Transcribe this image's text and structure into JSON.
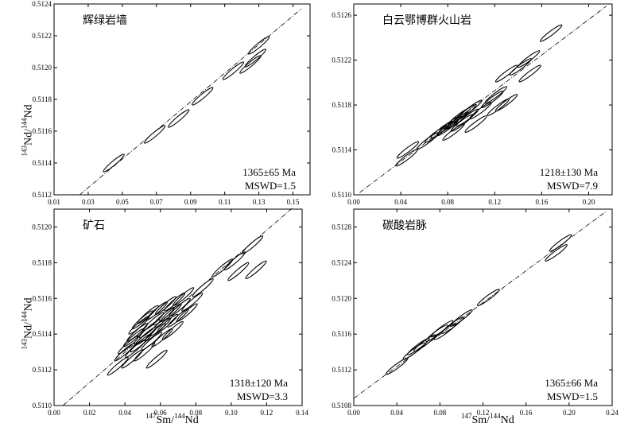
{
  "y_axis_label": {
    "mass_top": "143",
    "elem_top": "Nd/",
    "mass_bottom": "144",
    "elem_bottom": "Nd"
  },
  "x_axis_label": {
    "mass_top": "147",
    "elem_top": "Sm/",
    "mass_bottom": "144",
    "elem_bottom": "Nd"
  },
  "chart_data": [
    {
      "type": "scatter",
      "title": "辉绿岩墙",
      "annotation": [
        "1365±65 Ma",
        "MSWD=1.5"
      ],
      "xlim": [
        0.01,
        0.16
      ],
      "ylim": [
        0.5112,
        0.5124
      ],
      "xticks": [
        "0.01",
        "0.03",
        "0.05",
        "0.07",
        "0.09",
        "0.11",
        "0.13",
        "0.15"
      ],
      "yticks": [
        "0.5112",
        "0.5114",
        "0.5116",
        "0.5118",
        "0.5120",
        "0.5122",
        "0.5124"
      ],
      "isochron": {
        "x": [
          0.025,
          0.155
        ],
        "y": [
          0.5112,
          0.51237
        ]
      },
      "ellipses": [
        {
          "x": 0.045,
          "y": 0.5114
        },
        {
          "x": 0.069,
          "y": 0.51158
        },
        {
          "x": 0.083,
          "y": 0.51168
        },
        {
          "x": 0.097,
          "y": 0.51182
        },
        {
          "x": 0.115,
          "y": 0.51198
        },
        {
          "x": 0.125,
          "y": 0.51202
        },
        {
          "x": 0.128,
          "y": 0.51206
        },
        {
          "x": 0.13,
          "y": 0.51214
        }
      ]
    },
    {
      "type": "scatter",
      "title": "白云鄂博群火山岩",
      "annotation": [
        "1218±130 Ma",
        "MSWD=7.9"
      ],
      "xlim": [
        0.0,
        0.22
      ],
      "ylim": [
        0.511,
        0.5127
      ],
      "xticks": [
        "0.00",
        "0.04",
        "0.08",
        "0.12",
        "0.16",
        "0.20"
      ],
      "yticks": [
        "0.5110",
        "0.5114",
        "0.5118",
        "0.5122",
        "0.5126"
      ],
      "isochron": {
        "x": [
          0.005,
          0.215
        ],
        "y": [
          0.51102,
          0.51268
        ]
      },
      "ellipses": [
        {
          "x": 0.045,
          "y": 0.51133
        },
        {
          "x": 0.046,
          "y": 0.5114
        },
        {
          "x": 0.063,
          "y": 0.51148
        },
        {
          "x": 0.07,
          "y": 0.51154
        },
        {
          "x": 0.075,
          "y": 0.51158
        },
        {
          "x": 0.08,
          "y": 0.5116
        },
        {
          "x": 0.082,
          "y": 0.51163
        },
        {
          "x": 0.085,
          "y": 0.51156
        },
        {
          "x": 0.088,
          "y": 0.51166
        },
        {
          "x": 0.09,
          "y": 0.5117
        },
        {
          "x": 0.092,
          "y": 0.51164
        },
        {
          "x": 0.095,
          "y": 0.51173
        },
        {
          "x": 0.097,
          "y": 0.51169
        },
        {
          "x": 0.1,
          "y": 0.51177
        },
        {
          "x": 0.104,
          "y": 0.51163
        },
        {
          "x": 0.108,
          "y": 0.51175
        },
        {
          "x": 0.118,
          "y": 0.51185
        },
        {
          "x": 0.121,
          "y": 0.51189
        },
        {
          "x": 0.123,
          "y": 0.51178
        },
        {
          "x": 0.13,
          "y": 0.51182
        },
        {
          "x": 0.13,
          "y": 0.51208
        },
        {
          "x": 0.142,
          "y": 0.51214
        },
        {
          "x": 0.149,
          "y": 0.51221
        },
        {
          "x": 0.15,
          "y": 0.51208
        },
        {
          "x": 0.168,
          "y": 0.51244
        }
      ]
    },
    {
      "type": "scatter",
      "title": "矿石",
      "annotation": [
        "1318±120 Ma",
        "MSWD=3.3"
      ],
      "xlim": [
        0.0,
        0.14
      ],
      "ylim": [
        0.511,
        0.5121
      ],
      "xticks": [
        "0.00",
        "0.02",
        "0.04",
        "0.06",
        "0.08",
        "0.10",
        "0.12",
        "0.14"
      ],
      "yticks": [
        "0.5110",
        "0.5112",
        "0.5114",
        "0.5116",
        "0.5118",
        "0.5120"
      ],
      "isochron": {
        "x": [
          0.005,
          0.135
        ],
        "y": [
          0.511,
          0.51211
        ]
      },
      "ellipses": [
        {
          "x": 0.036,
          "y": 0.51122
        },
        {
          "x": 0.04,
          "y": 0.5113
        },
        {
          "x": 0.042,
          "y": 0.51134
        },
        {
          "x": 0.044,
          "y": 0.51126
        },
        {
          "x": 0.045,
          "y": 0.51138
        },
        {
          "x": 0.046,
          "y": 0.51132
        },
        {
          "x": 0.047,
          "y": 0.51141
        },
        {
          "x": 0.048,
          "y": 0.51145
        },
        {
          "x": 0.049,
          "y": 0.51135
        },
        {
          "x": 0.05,
          "y": 0.51148
        },
        {
          "x": 0.051,
          "y": 0.5113
        },
        {
          "x": 0.052,
          "y": 0.51139
        },
        {
          "x": 0.053,
          "y": 0.51151
        },
        {
          "x": 0.054,
          "y": 0.51143
        },
        {
          "x": 0.055,
          "y": 0.51136
        },
        {
          "x": 0.056,
          "y": 0.51147
        },
        {
          "x": 0.057,
          "y": 0.51141
        },
        {
          "x": 0.058,
          "y": 0.51126
        },
        {
          "x": 0.058,
          "y": 0.51153
        },
        {
          "x": 0.06,
          "y": 0.51144
        },
        {
          "x": 0.061,
          "y": 0.51138
        },
        {
          "x": 0.062,
          "y": 0.5115
        },
        {
          "x": 0.063,
          "y": 0.51156
        },
        {
          "x": 0.064,
          "y": 0.51146
        },
        {
          "x": 0.066,
          "y": 0.51152
        },
        {
          "x": 0.067,
          "y": 0.51142
        },
        {
          "x": 0.068,
          "y": 0.51158
        },
        {
          "x": 0.07,
          "y": 0.51149
        },
        {
          "x": 0.071,
          "y": 0.51155
        },
        {
          "x": 0.073,
          "y": 0.51161
        },
        {
          "x": 0.075,
          "y": 0.51152
        },
        {
          "x": 0.078,
          "y": 0.51158
        },
        {
          "x": 0.084,
          "y": 0.51166
        },
        {
          "x": 0.095,
          "y": 0.51177
        },
        {
          "x": 0.102,
          "y": 0.51181
        },
        {
          "x": 0.104,
          "y": 0.51175
        },
        {
          "x": 0.112,
          "y": 0.5119
        },
        {
          "x": 0.114,
          "y": 0.51176
        }
      ]
    },
    {
      "type": "scatter",
      "title": "碳酸岩脉",
      "annotation": [
        "1365±66 Ma",
        "MSWD=1.5"
      ],
      "xlim": [
        0.0,
        0.24
      ],
      "ylim": [
        0.5108,
        0.513
      ],
      "xticks": [
        "0.00",
        "0.04",
        "0.08",
        "0.12",
        "0.16",
        "0.20",
        "0.24"
      ],
      "yticks": [
        "0.5108",
        "0.5112",
        "0.5116",
        "0.5120",
        "0.5124",
        "0.5128"
      ],
      "isochron": {
        "x": [
          0.0,
          0.235
        ],
        "y": [
          0.51088,
          0.51298
        ]
      },
      "ellipses": [
        {
          "x": 0.04,
          "y": 0.51124
        },
        {
          "x": 0.056,
          "y": 0.51141
        },
        {
          "x": 0.06,
          "y": 0.51146
        },
        {
          "x": 0.066,
          "y": 0.5115
        },
        {
          "x": 0.077,
          "y": 0.51161
        },
        {
          "x": 0.082,
          "y": 0.51166
        },
        {
          "x": 0.085,
          "y": 0.51163
        },
        {
          "x": 0.092,
          "y": 0.5117
        },
        {
          "x": 0.1,
          "y": 0.51178
        },
        {
          "x": 0.125,
          "y": 0.51201
        },
        {
          "x": 0.188,
          "y": 0.51251
        },
        {
          "x": 0.192,
          "y": 0.51262
        }
      ]
    }
  ]
}
